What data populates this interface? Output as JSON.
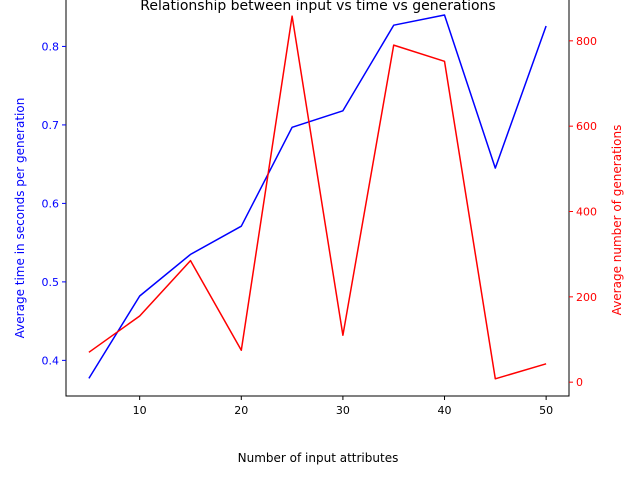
{
  "chart_data": {
    "type": "line",
    "title": "Relationship between input vs time vs generations",
    "xlabel": "Number of input attributes",
    "ylabel_left": "Average time in seconds per generation",
    "ylabel_right": "Average number of generations",
    "x": [
      5,
      10,
      15,
      20,
      25,
      30,
      35,
      40,
      45,
      50
    ],
    "xlim": [
      2.75,
      52.25
    ],
    "xticks": [
      "10",
      "20",
      "30",
      "40",
      "50"
    ],
    "ylim_left": [
      0.3546,
      0.8617
    ],
    "yticks_left": [
      "0.4",
      "0.5",
      "0.6",
      "0.7",
      "0.8"
    ],
    "ylim_right": [
      -32.4,
      900.4
    ],
    "yticks_right": [
      "0",
      "200",
      "400",
      "600",
      "800"
    ],
    "grid": false,
    "series": [
      {
        "axis": "left",
        "color": "#0000ff",
        "values": [
          0.377,
          0.482,
          0.535,
          0.571,
          0.697,
          0.718,
          0.827,
          0.84,
          0.645,
          0.826
        ]
      },
      {
        "axis": "right",
        "color": "#ff0000",
        "values": [
          70,
          155,
          285,
          75,
          858,
          110,
          790,
          752,
          8,
          43
        ]
      }
    ],
    "axis_colors": {
      "left": "#0000ff",
      "right": "#ff0000",
      "x": "#000000"
    }
  }
}
